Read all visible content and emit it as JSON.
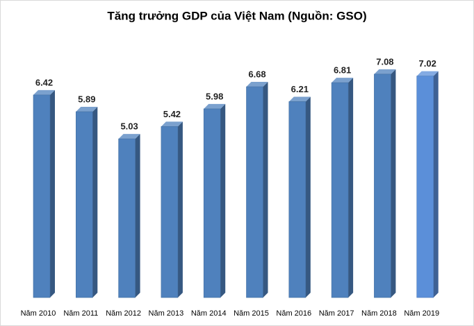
{
  "chart_data": {
    "type": "bar3d",
    "title": "Tăng trưởng GDP của Việt Nam (Nguồn: GSO)",
    "categories": [
      "Năm 2010",
      "Năm 2011",
      "Năm 2012",
      "Năm 2013",
      "Năm 2014",
      "Năm 2015",
      "Năm 2016",
      "Năm 2017",
      "Năm 2018",
      "Năm 2019"
    ],
    "values": [
      6.42,
      5.89,
      5.03,
      5.42,
      5.98,
      6.68,
      6.21,
      6.81,
      7.08,
      7.02
    ],
    "colors": [
      "#4f81bd",
      "#4f81bd",
      "#4f81bd",
      "#4f81bd",
      "#4f81bd",
      "#4f81bd",
      "#4f81bd",
      "#4f81bd",
      "#4f81bd",
      "#5b8fd9"
    ],
    "ylim": [
      0,
      9
    ]
  }
}
